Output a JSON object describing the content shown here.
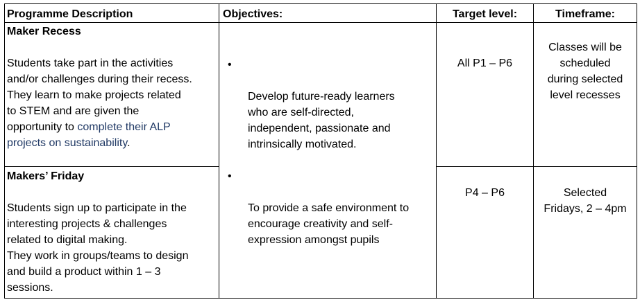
{
  "table": {
    "headers": {
      "programme": "Programme Description",
      "objectives": "Objectives:",
      "target": "Target level:",
      "timeframe": "Timeframe:"
    },
    "rows": [
      {
        "title": "Maker Recess",
        "desc_a": "Students take part in the activities\nand/or challenges during their recess.\nThey learn to make projects related\nto STEM and are given the\nopportunity to ",
        "desc_b": "complete their ALP\nprojects on sustainability",
        "desc_c": ".",
        "target": "All P1 – P6",
        "timeframe": "Classes will be\nscheduled\nduring selected\nlevel recesses"
      },
      {
        "title": "Makers’ Friday",
        "desc": "Students sign up to participate in the\ninteresting projects & challenges\nrelated to digital making.\nThey work in groups/teams to design\nand build a product within 1 – 3\nsessions.",
        "target": "P4 – P6",
        "timeframe": "Selected\nFridays, 2 – 4pm"
      }
    ],
    "objectives": [
      {
        "bullet": "•",
        "text": "Develop future-ready learners\nwho are self-directed,\nindependent, passionate and\nintrinsically motivated."
      },
      {
        "bullet": "•",
        "text": "To provide a safe environment to\nencourage creativity and self-\nexpression amongst pupils"
      }
    ]
  }
}
